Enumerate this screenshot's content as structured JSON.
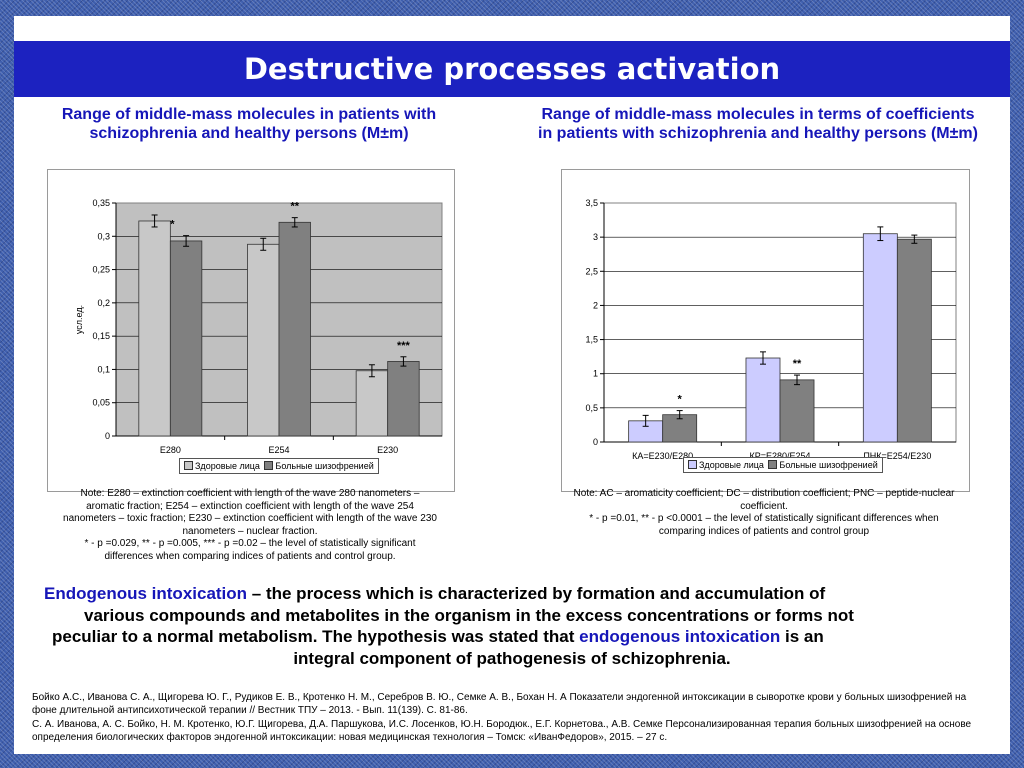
{
  "slide": {
    "title": "Destructive processes activation"
  },
  "left_chart": {
    "title": "Range of middle-mass molecules in patients with schizophrenia and healthy persons (M±m)",
    "note_lines": [
      "Note:  E280 – extinction coefficient with length of the wave 280 nanometers –",
      "aromatic fraction; E254 – extinction coefficient with length of the wave 254",
      "nanometers – toxic fraction; E230 – extinction coefficient with length of the wave 230",
      "nanometers – nuclear fraction.",
      "* - p =0.029, ** - p =0.005, *** - p =0.02 – the level of statistically significant",
      "differences when comparing indices of patients and control group."
    ]
  },
  "right_chart": {
    "title": "Range of middle-mass molecules in terms of coefficients in patients with schizophrenia and healthy persons (M±m)",
    "note_lines": [
      "Note:  AC – aromaticity coefficient; DC – distribution coefficient; PNC – peptide-nuclear",
      "coefficient.",
      "* - p =0.01, ** - p <0.0001 – the level of statistically significant differences when",
      "comparing indices of patients and control group"
    ]
  },
  "body_text": {
    "term": "Endogenous intoxication",
    "definition_lines": [
      " – the process which is characterized by formation and accumulation of",
      "various compounds and metabolites in the organism in the excess concentrations or forms not",
      "peculiar to a normal metabolism. The hypothesis was stated that "
    ],
    "term2": "endogenous intoxication",
    "tail_1": " is an",
    "tail_2": "integral component of pathogenesis of schizophrenia."
  },
  "references": [
    "Бойко А.С., Иванова С. А., Щигорева Ю. Г., Рудиков Е. В., Кротенко Н. М., Серебров В. Ю., Семке А. В., Бохан Н. А Показатели эндогенной интоксикации в сыворотке крови у больных шизофренией на фоне длительной антипсихотической терапии // Вестник ТПУ – 2013. - Вып. 11(139). С. 81-86.",
    "С. А. Иванова, А. С. Бойко, Н. М. Кротенко, Ю.Г. Щигорева, Д.А. Паршукова, И.С. Лосенков, Ю.Н. Бородюк., Е.Г. Корнетова., А.В. Семке Персонализированная терапия больных шизофренией на основе определения биологических факторов эндогенной интоксикации: новая медицинская технология – Томск: «ИванФедоров», 2015. – 27 с."
  ],
  "chart_data": [
    {
      "type": "bar",
      "categories": [
        "E280",
        "E254",
        "E230"
      ],
      "series": [
        {
          "name": "Здоровые лица",
          "values": [
            0.323,
            0.288,
            0.098
          ],
          "errors": [
            0.009,
            0.009,
            0.009
          ],
          "color": "#c8c8c8"
        },
        {
          "name": "Больные шизофренией",
          "values": [
            0.293,
            0.321,
            0.112
          ],
          "errors": [
            0.008,
            0.007,
            0.007
          ],
          "color": "#808080"
        }
      ],
      "significance": [
        "*",
        "**",
        "***"
      ],
      "ylabel": "усл.ед.",
      "ylim": [
        0,
        0.35
      ],
      "yticks": [
        "0",
        "0,05",
        "0,1",
        "0,15",
        "0,2",
        "0,25",
        "0,3",
        "0,35"
      ],
      "plot_background": "#c0c0c0",
      "grid": true,
      "legend_position": "bottom"
    },
    {
      "type": "bar",
      "categories": [
        "КА=E230/E280",
        "КР=E280/E254",
        "ПНК=E254/E230"
      ],
      "series": [
        {
          "name": "Здоровые лица",
          "values": [
            0.31,
            1.23,
            3.05
          ],
          "errors": [
            0.08,
            0.09,
            0.1
          ],
          "color": "#ccccff"
        },
        {
          "name": "Больные шизофренией",
          "values": [
            0.4,
            0.91,
            2.97
          ],
          "errors": [
            0.06,
            0.07,
            0.06
          ],
          "color": "#808080"
        }
      ],
      "significance": [
        "*",
        "**",
        ""
      ],
      "ylim": [
        0,
        3.5
      ],
      "yticks": [
        "0",
        "0,5",
        "1",
        "1,5",
        "2",
        "2,5",
        "3",
        "3,5"
      ],
      "plot_background": "#ffffff",
      "grid": true,
      "legend_position": "bottom"
    }
  ]
}
